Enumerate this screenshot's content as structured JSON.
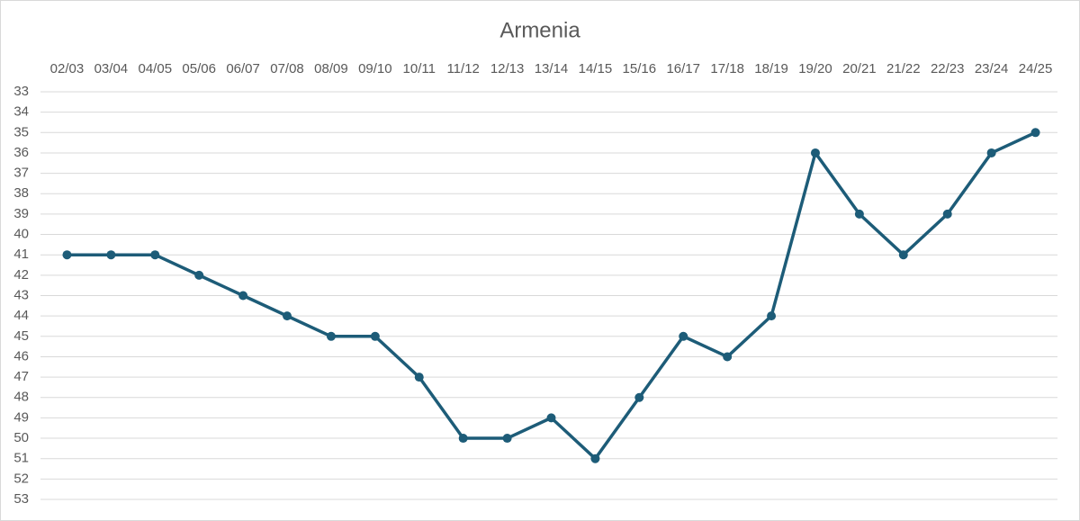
{
  "chart_data": {
    "type": "line",
    "title": "Armenia",
    "categories": [
      "02/03",
      "03/04",
      "04/05",
      "05/06",
      "06/07",
      "07/08",
      "08/09",
      "09/10",
      "10/11",
      "11/12",
      "12/13",
      "13/14",
      "14/15",
      "15/16",
      "16/17",
      "17/18",
      "18/19",
      "19/20",
      "20/21",
      "21/22",
      "22/23",
      "23/24",
      "24/25"
    ],
    "values": [
      41,
      41,
      41,
      42,
      43,
      44,
      45,
      45,
      47,
      50,
      50,
      49,
      51,
      48,
      45,
      46,
      44,
      36,
      39,
      41,
      39,
      36,
      35
    ],
    "color": "#1d5c78",
    "ylim": [
      33,
      53
    ],
    "yticks": [
      33,
      34,
      35,
      36,
      37,
      38,
      39,
      40,
      41,
      42,
      43,
      44,
      45,
      46,
      47,
      48,
      49,
      50,
      51,
      52,
      53
    ],
    "y_reversed": true,
    "x_axis_position": "top",
    "grid": true
  }
}
